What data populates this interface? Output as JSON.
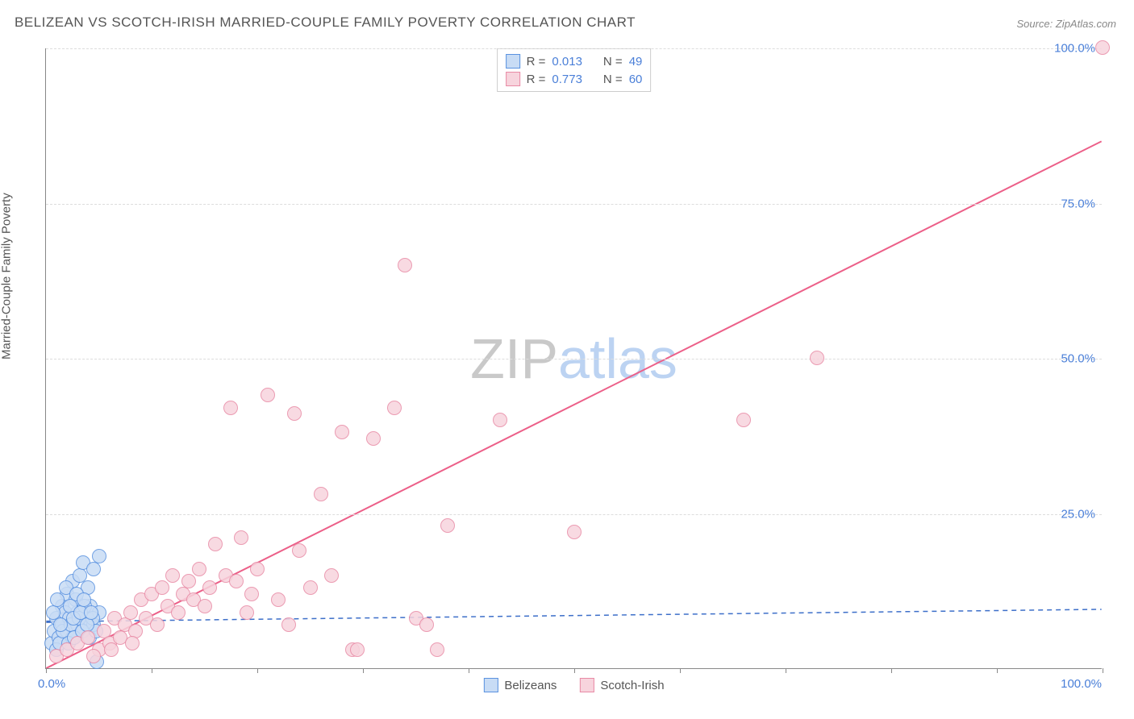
{
  "title": "BELIZEAN VS SCOTCH-IRISH MARRIED-COUPLE FAMILY POVERTY CORRELATION CHART",
  "source": "Source: ZipAtlas.com",
  "ylabel": "Married-Couple Family Poverty",
  "watermark": {
    "part1": "ZIP",
    "part2": "atlas",
    "color1": "#c9c9c9",
    "color2": "#bcd3f2"
  },
  "axes": {
    "xlim": [
      0,
      100
    ],
    "ylim": [
      0,
      100
    ],
    "yticks": [
      {
        "v": 25,
        "label": "25.0%"
      },
      {
        "v": 50,
        "label": "50.0%"
      },
      {
        "v": 75,
        "label": "75.0%"
      },
      {
        "v": 100,
        "label": "100.0%"
      }
    ],
    "xtick_positions": [
      0,
      10,
      20,
      30,
      40,
      50,
      60,
      70,
      80,
      90,
      100
    ],
    "xlabel_min": "0.0%",
    "xlabel_max": "100.0%",
    "grid_color": "#dddddd",
    "axis_color": "#888888",
    "tick_label_color": "#4a7fd8"
  },
  "series": [
    {
      "name": "Belizeans",
      "fill_color": "#c8dcf5",
      "stroke_color": "#5a92e0",
      "marker_radius": 9,
      "trend": {
        "x1": 0,
        "y1": 7.5,
        "x2": 100,
        "y2": 9.5,
        "solid_until_x": 5,
        "color": "#3d6fc9",
        "width": 2,
        "dash": "6,5"
      },
      "R": "0.013",
      "N": "49",
      "points": [
        [
          0.5,
          4
        ],
        [
          0.8,
          6
        ],
        [
          1,
          8
        ],
        [
          1.2,
          5
        ],
        [
          1.5,
          10
        ],
        [
          1.5,
          7
        ],
        [
          1.8,
          9
        ],
        [
          2,
          6
        ],
        [
          2,
          12
        ],
        [
          2.2,
          8
        ],
        [
          2.5,
          14
        ],
        [
          2.5,
          5
        ],
        [
          2.8,
          11
        ],
        [
          3,
          9
        ],
        [
          3,
          7
        ],
        [
          3.2,
          15
        ],
        [
          3.5,
          6
        ],
        [
          3.5,
          17
        ],
        [
          4,
          8
        ],
        [
          4,
          13
        ],
        [
          4.2,
          10
        ],
        [
          4.5,
          16
        ],
        [
          4.5,
          7
        ],
        [
          5,
          9
        ],
        [
          5,
          18
        ],
        [
          1,
          3
        ],
        [
          1.3,
          4
        ],
        [
          1.6,
          6
        ],
        [
          2.1,
          4
        ],
        [
          2.4,
          7
        ],
        [
          2.7,
          5
        ],
        [
          3.1,
          8
        ],
        [
          3.4,
          6
        ],
        [
          3.7,
          10
        ],
        [
          4.1,
          5
        ],
        [
          4.4,
          8
        ],
        [
          4.7,
          6
        ],
        [
          0.7,
          9
        ],
        [
          1.1,
          11
        ],
        [
          1.4,
          7
        ],
        [
          1.9,
          13
        ],
        [
          2.3,
          10
        ],
        [
          2.6,
          8
        ],
        [
          2.9,
          12
        ],
        [
          3.3,
          9
        ],
        [
          3.6,
          11
        ],
        [
          3.9,
          7
        ],
        [
          4.3,
          9
        ],
        [
          4.8,
          1
        ]
      ]
    },
    {
      "name": "Scotch-Irish",
      "fill_color": "#f7d4dd",
      "stroke_color": "#e88aa5",
      "marker_radius": 9,
      "trend": {
        "x1": 0,
        "y1": 0,
        "x2": 100,
        "y2": 85,
        "solid_until_x": 100,
        "color": "#ec5f88",
        "width": 2
      },
      "R": "0.773",
      "N": "60",
      "points": [
        [
          1,
          2
        ],
        [
          2,
          3
        ],
        [
          3,
          4
        ],
        [
          4,
          5
        ],
        [
          5,
          3
        ],
        [
          5.5,
          6
        ],
        [
          6,
          4
        ],
        [
          6.5,
          8
        ],
        [
          7,
          5
        ],
        [
          7.5,
          7
        ],
        [
          8,
          9
        ],
        [
          8.5,
          6
        ],
        [
          9,
          11
        ],
        [
          9.5,
          8
        ],
        [
          10,
          12
        ],
        [
          10.5,
          7
        ],
        [
          11,
          13
        ],
        [
          11.5,
          10
        ],
        [
          12,
          15
        ],
        [
          12.5,
          9
        ],
        [
          13,
          12
        ],
        [
          13.5,
          14
        ],
        [
          14,
          11
        ],
        [
          14.5,
          16
        ],
        [
          15,
          10
        ],
        [
          15.5,
          13
        ],
        [
          16,
          20
        ],
        [
          17,
          15
        ],
        [
          17.5,
          42
        ],
        [
          18,
          14
        ],
        [
          18.5,
          21
        ],
        [
          19,
          9
        ],
        [
          19.5,
          12
        ],
        [
          20,
          16
        ],
        [
          21,
          44
        ],
        [
          22,
          11
        ],
        [
          23,
          7
        ],
        [
          23.5,
          41
        ],
        [
          24,
          19
        ],
        [
          25,
          13
        ],
        [
          26,
          28
        ],
        [
          27,
          15
        ],
        [
          28,
          38
        ],
        [
          29,
          3
        ],
        [
          29.5,
          3
        ],
        [
          31,
          37
        ],
        [
          33,
          42
        ],
        [
          34,
          65
        ],
        [
          35,
          8
        ],
        [
          36,
          7
        ],
        [
          37,
          3
        ],
        [
          38,
          23
        ],
        [
          43,
          40
        ],
        [
          50,
          22
        ],
        [
          66,
          40
        ],
        [
          73,
          50
        ],
        [
          100,
          100
        ],
        [
          4.5,
          2
        ],
        [
          6.2,
          3
        ],
        [
          8.2,
          4
        ]
      ]
    }
  ],
  "legend_top": {
    "rows": [
      {
        "series_idx": 0,
        "R_label": "R =",
        "N_label": "N ="
      },
      {
        "series_idx": 1,
        "R_label": "R =",
        "N_label": "N ="
      }
    ]
  },
  "legend_bottom": [
    {
      "series_idx": 0
    },
    {
      "series_idx": 1
    }
  ]
}
